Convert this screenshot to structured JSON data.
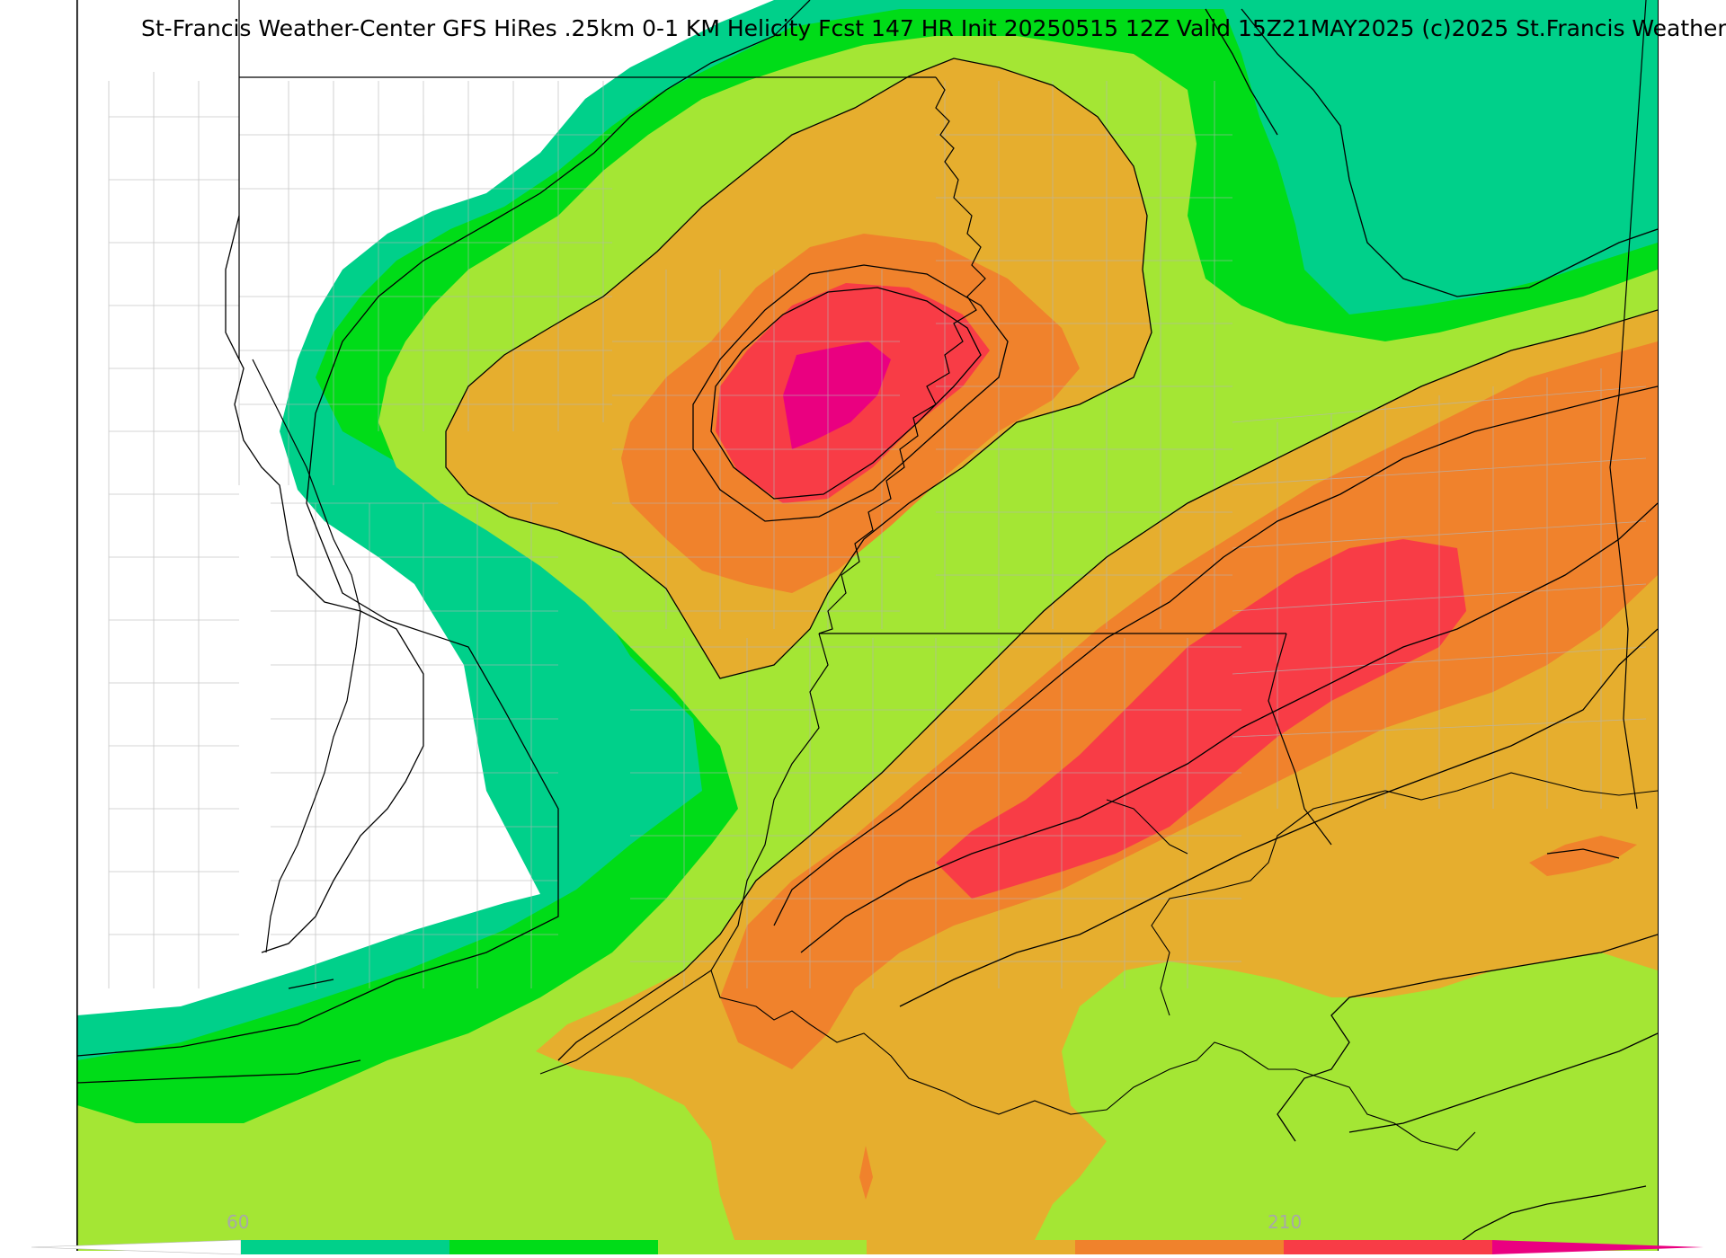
{
  "title": "St-Francis Weather-Center GFS HiRes .25km 0-1 KM Helicity Fcst 147 HR Init 20250515 12Z  Valid 15Z21MAY2025    (c)2025 St.Francis Weather",
  "colors": {
    "lvl0": "#ffffff",
    "lvl1": "#00d08a",
    "lvl2": "#00dc18",
    "lvl3": "#a4e634",
    "lvl4": "#e6ae2e",
    "lvl5": "#f0822c",
    "lvl6": "#f83c46",
    "lvl7": "#ea0080"
  },
  "colorbar": {
    "ticks": [
      {
        "label": "60"
      },
      {
        "label": "210"
      }
    ]
  }
}
